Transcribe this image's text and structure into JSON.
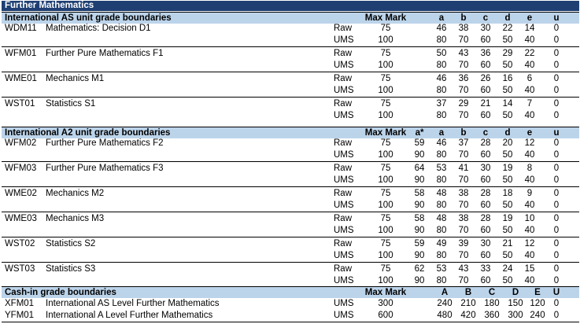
{
  "title": "Further Mathematics",
  "as": {
    "heading": "International AS unit grade boundaries",
    "max_header": "Max Mark",
    "grade_headers": [
      "a",
      "b",
      "c",
      "d",
      "e",
      "u"
    ],
    "units": [
      {
        "code": "WDM11",
        "name": "Mathematics: Decision D1",
        "raw": {
          "label": "Raw",
          "max": "75",
          "grades": [
            "46",
            "38",
            "30",
            "22",
            "14",
            "0"
          ]
        },
        "ums": {
          "label": "UMS",
          "max": "100",
          "grades": [
            "80",
            "70",
            "60",
            "50",
            "40",
            "0"
          ]
        }
      },
      {
        "code": "WFM01",
        "name": "Further Pure Mathematics F1",
        "raw": {
          "label": "Raw",
          "max": "75",
          "grades": [
            "50",
            "43",
            "36",
            "29",
            "22",
            "0"
          ]
        },
        "ums": {
          "label": "UMS",
          "max": "100",
          "grades": [
            "80",
            "70",
            "60",
            "50",
            "40",
            "0"
          ]
        }
      },
      {
        "code": "WME01",
        "name": "Mechanics M1",
        "raw": {
          "label": "Raw",
          "max": "75",
          "grades": [
            "46",
            "36",
            "26",
            "16",
            "6",
            "0"
          ]
        },
        "ums": {
          "label": "UMS",
          "max": "100",
          "grades": [
            "80",
            "70",
            "60",
            "50",
            "40",
            "0"
          ]
        }
      },
      {
        "code": "WST01",
        "name": "Statistics S1",
        "raw": {
          "label": "Raw",
          "max": "75",
          "grades": [
            "37",
            "29",
            "21",
            "14",
            "7",
            "0"
          ]
        },
        "ums": {
          "label": "UMS",
          "max": "100",
          "grades": [
            "80",
            "70",
            "60",
            "50",
            "40",
            "0"
          ]
        }
      }
    ]
  },
  "a2": {
    "heading": "International A2 unit grade boundaries",
    "max_header": "Max Mark",
    "grade_headers": [
      "a*",
      "a",
      "b",
      "c",
      "d",
      "e",
      "u"
    ],
    "units": [
      {
        "code": "WFM02",
        "name": "Further Pure Mathematics F2",
        "raw": {
          "label": "Raw",
          "max": "75",
          "grades": [
            "59",
            "46",
            "37",
            "28",
            "20",
            "12",
            "0"
          ]
        },
        "ums": {
          "label": "UMS",
          "max": "100",
          "grades": [
            "90",
            "80",
            "70",
            "60",
            "50",
            "40",
            "0"
          ]
        }
      },
      {
        "code": "WFM03",
        "name": "Further Pure Mathematics F3",
        "raw": {
          "label": "Raw",
          "max": "75",
          "grades": [
            "64",
            "53",
            "41",
            "30",
            "19",
            "8",
            "0"
          ]
        },
        "ums": {
          "label": "UMS",
          "max": "100",
          "grades": [
            "90",
            "80",
            "70",
            "60",
            "50",
            "40",
            "0"
          ]
        }
      },
      {
        "code": "WME02",
        "name": "Mechanics M2",
        "raw": {
          "label": "Raw",
          "max": "75",
          "grades": [
            "58",
            "48",
            "38",
            "28",
            "18",
            "9",
            "0"
          ]
        },
        "ums": {
          "label": "UMS",
          "max": "100",
          "grades": [
            "90",
            "80",
            "70",
            "60",
            "50",
            "40",
            "0"
          ]
        }
      },
      {
        "code": "WME03",
        "name": "Mechanics M3",
        "raw": {
          "label": "Raw",
          "max": "75",
          "grades": [
            "58",
            "48",
            "38",
            "28",
            "19",
            "10",
            "0"
          ]
        },
        "ums": {
          "label": "UMS",
          "max": "100",
          "grades": [
            "90",
            "80",
            "70",
            "60",
            "50",
            "40",
            "0"
          ]
        }
      },
      {
        "code": "WST02",
        "name": "Statistics S2",
        "raw": {
          "label": "Raw",
          "max": "75",
          "grades": [
            "59",
            "49",
            "39",
            "30",
            "21",
            "12",
            "0"
          ]
        },
        "ums": {
          "label": "UMS",
          "max": "100",
          "grades": [
            "90",
            "80",
            "70",
            "60",
            "50",
            "40",
            "0"
          ]
        }
      },
      {
        "code": "WST03",
        "name": "Statistics S3",
        "raw": {
          "label": "Raw",
          "max": "75",
          "grades": [
            "62",
            "53",
            "43",
            "33",
            "24",
            "15",
            "0"
          ]
        },
        "ums": {
          "label": "UMS",
          "max": "100",
          "grades": [
            "90",
            "80",
            "70",
            "60",
            "50",
            "40",
            "0"
          ]
        }
      }
    ]
  },
  "cash": {
    "heading": "Cash-in grade boundaries",
    "max_header": "Max Mark",
    "grade_headers": [
      "A",
      "B",
      "C",
      "D",
      "E",
      "U"
    ],
    "rows": [
      {
        "code": "XFM01",
        "name": "International AS Level Further Mathematics",
        "type": "UMS",
        "max": "300",
        "grades": [
          "240",
          "210",
          "180",
          "150",
          "120",
          "0"
        ]
      },
      {
        "code": "YFM01",
        "name": "International A Level Further Mathematics",
        "type": "UMS",
        "max": "600",
        "grades": [
          "480",
          "420",
          "360",
          "300",
          "240",
          "0"
        ]
      }
    ]
  },
  "colors": {
    "title_bg": "#1f3f73",
    "section_bg": "#bcd4ea"
  }
}
